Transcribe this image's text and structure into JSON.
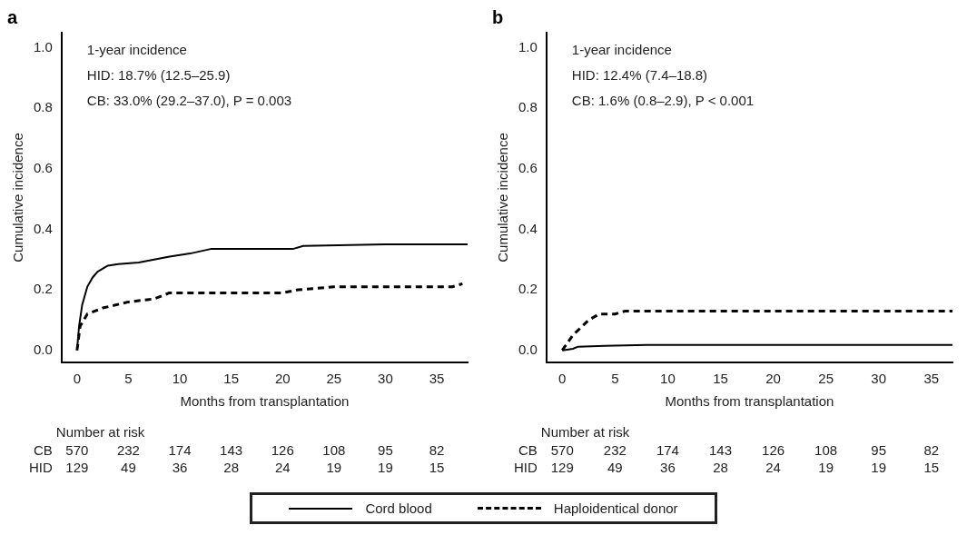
{
  "chart_data": [
    {
      "type": "line",
      "title": "a",
      "xlabel": "Months from transplantation",
      "ylabel": "Cumulative incidence",
      "xlim": [
        -1.5,
        38
      ],
      "ylim": [
        -0.04,
        1.05
      ],
      "xticks": [
        0,
        5,
        10,
        15,
        20,
        25,
        30,
        35
      ],
      "yticks": [
        {
          "value": 0,
          "label": "0.0"
        },
        {
          "value": 0.2,
          "label": "0.2"
        },
        {
          "value": 0.4,
          "label": "0.4"
        },
        {
          "value": 0.6,
          "label": "0.6"
        },
        {
          "value": 0.8,
          "label": "0.8"
        },
        {
          "value": 1,
          "label": "1.0"
        }
      ],
      "legend": "bottom",
      "series": [
        {
          "name": "Cord blood",
          "color": "#000000",
          "line_style": "solid",
          "x": [
            0,
            0.2,
            0.5,
            1,
            1.5,
            2,
            3,
            4,
            6,
            9,
            11,
            13,
            21,
            22,
            30,
            38
          ],
          "values": [
            0,
            0.08,
            0.15,
            0.21,
            0.24,
            0.26,
            0.28,
            0.285,
            0.29,
            0.31,
            0.32,
            0.335,
            0.335,
            0.345,
            0.35,
            0.35
          ]
        },
        {
          "name": "Haploidentical donor",
          "color": "#000000",
          "line_style": "dashed",
          "x": [
            0,
            0.3,
            1,
            2.5,
            5,
            7.5,
            9,
            20,
            21.5,
            25,
            36.5,
            37.5
          ],
          "values": [
            0,
            0.08,
            0.12,
            0.14,
            0.16,
            0.17,
            0.19,
            0.19,
            0.2,
            0.21,
            0.21,
            0.22
          ]
        }
      ],
      "annotations": [
        "1-year incidence",
        "HID: 18.7% (12.5–25.9)",
        "CB: 33.0% (29.2–37.0), P = 0.003",
        "Number at risk",
        "CB",
        "570",
        "232",
        "174",
        "143",
        "126",
        "108",
        "95",
        "82",
        "HID",
        "129",
        "49",
        "36",
        "28",
        "24",
        "19",
        "19",
        "15"
      ]
    },
    {
      "type": "line",
      "title": "b",
      "xlabel": "Months from transplantation",
      "ylabel": "Cumulative incidence",
      "xlim": [
        -1.5,
        37
      ],
      "ylim": [
        -0.04,
        1.05
      ],
      "xticks": [
        0,
        5,
        10,
        15,
        20,
        25,
        30,
        35
      ],
      "yticks": [
        {
          "value": 0,
          "label": "0.0"
        },
        {
          "value": 0.2,
          "label": "0.2"
        },
        {
          "value": 0.4,
          "label": "0.4"
        },
        {
          "value": 0.6,
          "label": "0.6"
        },
        {
          "value": 0.8,
          "label": "0.8"
        },
        {
          "value": 1,
          "label": "1.0"
        }
      ],
      "series": [
        {
          "color": "#000000",
          "line_style": "solid",
          "x": [
            0,
            1,
            1.5,
            4,
            8,
            37
          ],
          "values": [
            0,
            0.005,
            0.012,
            0.015,
            0.018,
            0.018
          ]
        },
        {
          "color": "#000000",
          "line_style": "dashed",
          "x": [
            0,
            1,
            2.5,
            3.5,
            5,
            6,
            37
          ],
          "values": [
            0,
            0.05,
            0.1,
            0.12,
            0.12,
            0.13,
            0.13
          ]
        }
      ],
      "annotations": [
        "1-year incidence",
        "HID: 12.4% (7.4–18.8)",
        "CB: 1.6% (0.8–2.9), P < 0.001",
        "Number at risk",
        "CB",
        "570",
        "232",
        "174",
        "143",
        "126",
        "108",
        "95",
        "82",
        "HID",
        "129",
        "49",
        "36",
        "28",
        "24",
        "19",
        "19",
        "15"
      ]
    }
  ]
}
